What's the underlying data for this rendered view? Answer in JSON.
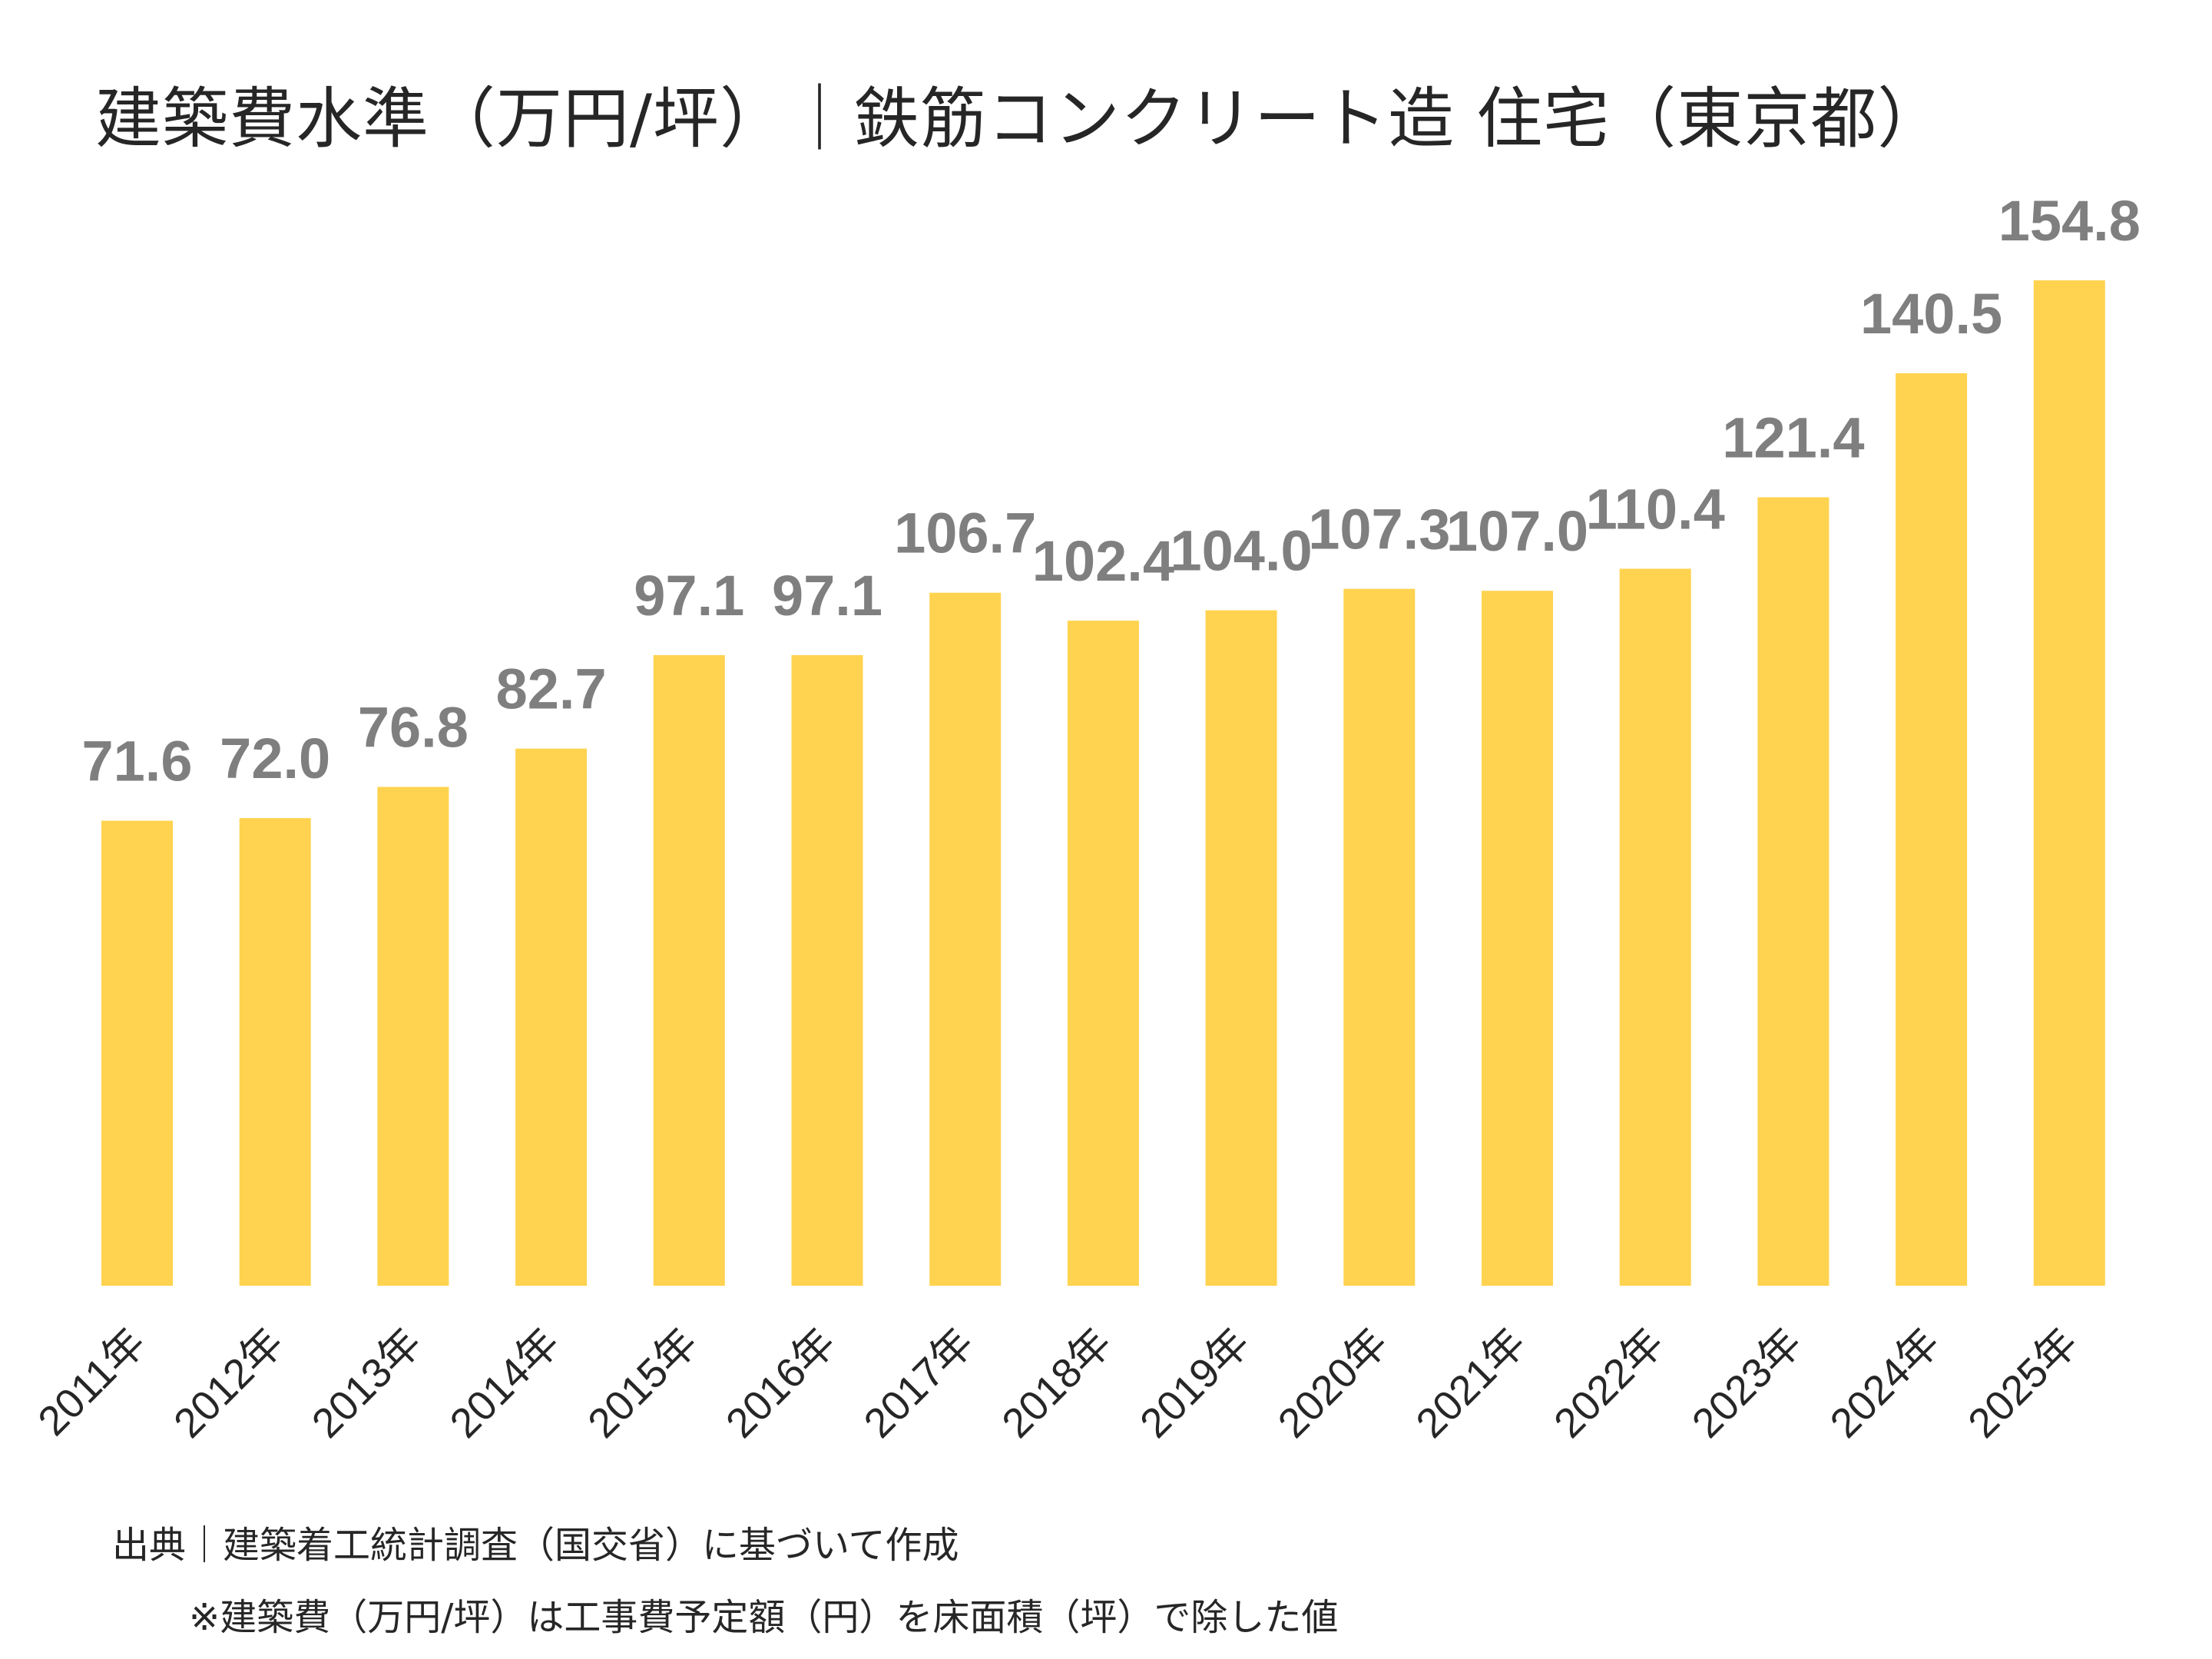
{
  "chart_data": {
    "type": "bar",
    "title": "建築費水準（万円/坪）｜鉄筋コンクリート造 住宅（東京都）",
    "categories": [
      "2011年",
      "2012年",
      "2013年",
      "2014年",
      "2015年",
      "2016年",
      "2017年",
      "2018年",
      "2019年",
      "2020年",
      "2021年",
      "2022年",
      "2023年",
      "2024年",
      "2025年"
    ],
    "values": [
      71.6,
      72.0,
      76.8,
      82.7,
      97.1,
      97.1,
      106.7,
      102.4,
      104.0,
      107.3,
      107.0,
      110.4,
      121.4,
      140.5,
      154.8
    ],
    "value_labels": [
      "71.6",
      "72.0",
      "76.8",
      "82.7",
      "97.1",
      "97.1",
      "106.7",
      "102.4",
      "104.0",
      "107.3",
      "107.0",
      "110.4",
      "121.4",
      "140.5",
      "154.8"
    ],
    "xlabel": "",
    "ylabel": "",
    "ylim": [
      0,
      154.8
    ],
    "grid": false,
    "legend": "none",
    "colors": {
      "bar": "#FFD34F",
      "value_label": "#7F7F7F",
      "text": "#262626"
    }
  },
  "notes": {
    "source": "出典｜建築着工統計調査（国交省）に基づいて作成",
    "footnote": "※建築費（万円/坪）は工事費予定額（円）を床面積（坪）で除した値"
  }
}
